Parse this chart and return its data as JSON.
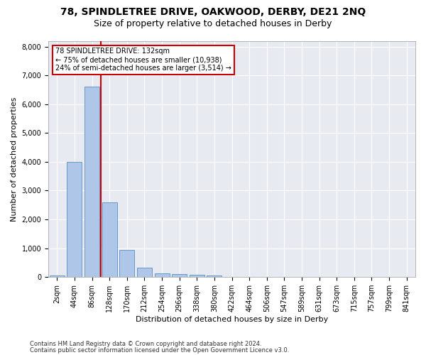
{
  "title": "78, SPINDLETREE DRIVE, OAKWOOD, DERBY, DE21 2NQ",
  "subtitle": "Size of property relative to detached houses in Derby",
  "xlabel": "Distribution of detached houses by size in Derby",
  "ylabel": "Number of detached properties",
  "footnote1": "Contains HM Land Registry data © Crown copyright and database right 2024.",
  "footnote2": "Contains public sector information licensed under the Open Government Licence v3.0.",
  "bar_labels": [
    "2sqm",
    "44sqm",
    "86sqm",
    "128sqm",
    "170sqm",
    "212sqm",
    "254sqm",
    "296sqm",
    "338sqm",
    "380sqm",
    "422sqm",
    "464sqm",
    "506sqm",
    "547sqm",
    "589sqm",
    "631sqm",
    "673sqm",
    "715sqm",
    "757sqm",
    "799sqm",
    "841sqm"
  ],
  "bar_values": [
    60,
    4000,
    6600,
    2600,
    950,
    320,
    130,
    110,
    80,
    60,
    0,
    0,
    0,
    0,
    0,
    0,
    0,
    0,
    0,
    0,
    0
  ],
  "bar_color": "#aec6e8",
  "bar_edge_color": "#5a8fc0",
  "background_color": "#e8eaf2",
  "grid_color": "#ffffff",
  "vline_color": "#cc0000",
  "ylim": [
    0,
    8200
  ],
  "yticks": [
    0,
    1000,
    2000,
    3000,
    4000,
    5000,
    6000,
    7000,
    8000
  ],
  "annotation_line1": "78 SPINDLETREE DRIVE: 132sqm",
  "annotation_line2": "← 75% of detached houses are smaller (10,938)",
  "annotation_line3": "24% of semi-detached houses are larger (3,514) →",
  "annotation_box_color": "#cc0000",
  "title_fontsize": 10,
  "subtitle_fontsize": 9,
  "axis_label_fontsize": 8,
  "tick_fontsize": 7,
  "annotation_fontsize": 7
}
